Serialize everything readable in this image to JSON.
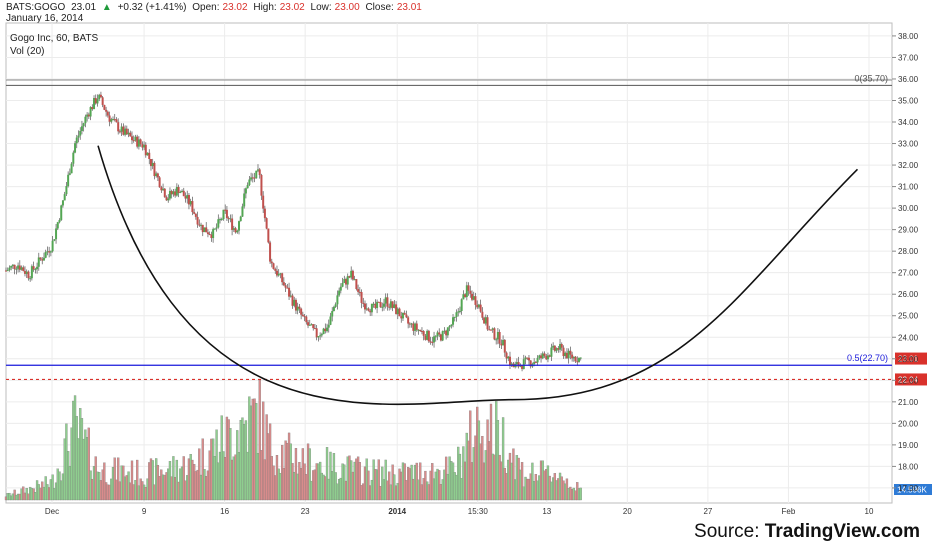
{
  "header": {
    "symbol": "BATS:GOGO",
    "last": "23.01",
    "arrow": "▲",
    "change": "+0.32 (+1.41%)",
    "open_label": "Open:",
    "open": "23.02",
    "high_label": "High:",
    "high": "23.02",
    "low_label": "Low:",
    "low": "23.00",
    "close_label": "Close:",
    "close": "23.01",
    "date": "January 16, 2014"
  },
  "source": {
    "label": "Source: ",
    "name": "TradingView.com"
  },
  "chart_data": {
    "type": "candlestick",
    "title": "Gogo Inc, 60, BATS",
    "indicator": "Vol (20)",
    "y_ticks": [
      17,
      18,
      19,
      20,
      21,
      22,
      23,
      24,
      25,
      26,
      27,
      28,
      29,
      30,
      31,
      32,
      33,
      34,
      35,
      36,
      37,
      38
    ],
    "y_tick_labels": [
      "17.00",
      "18.00",
      "19.00",
      "20.00",
      "21.00",
      "22.00",
      "23.00",
      "24.00",
      "25.00",
      "26.00",
      "27.00",
      "28.00",
      "29.00",
      "30.00",
      "31.00",
      "32.00",
      "33.00",
      "34.00",
      "35.00",
      "36.00",
      "37.00",
      "38.00"
    ],
    "ylim": [
      16.3,
      38.6
    ],
    "x_ticks": [
      "Dec",
      "9",
      "16",
      "23",
      "2014",
      "15:30",
      "13",
      "20",
      "27",
      "Feb",
      "10"
    ],
    "x_axis_start": "2013-11-27",
    "x_axis_end": "2014-02-12",
    "x_tick_dates": [
      "2013-12-01",
      "2013-12-09",
      "2013-12-16",
      "2013-12-23",
      "2013-12-31",
      "2014-01-07",
      "2014-01-13",
      "2014-01-20",
      "2014-01-27",
      "2014-02-03",
      "2014-02-10"
    ],
    "fib_levels": [
      {
        "label": "0(35.70)",
        "value": 35.7,
        "color": "#555555"
      },
      {
        "label": "0.5(22.70)",
        "value": 22.7,
        "color": "#1a1adb"
      }
    ],
    "last_price": {
      "label": "23.01",
      "value": 23.01,
      "color": "#d9312b"
    },
    "support": {
      "label": "22.04",
      "value": 22.04,
      "color": "#d9312b"
    },
    "volume_label": "14.596K",
    "colors": {
      "up": "#53a653",
      "down": "#c0504d",
      "volume_up": "#8fce8f",
      "volume_down": "#d98c8c"
    },
    "cup_curve": {
      "description": "hand-drawn cup arc",
      "start": [
        "2013-12-05",
        32.9
      ],
      "bottom": [
        "2014-01-10",
        21.1
      ],
      "end": [
        "2014-02-09",
        31.8
      ]
    },
    "close_path": [
      [
        "2013-11-27",
        27.1
      ],
      [
        "2013-11-28",
        27.4
      ],
      [
        "2013-11-29",
        26.9
      ],
      [
        "2013-12-01",
        28.3
      ],
      [
        "2013-12-02",
        30.4
      ],
      [
        "2013-12-03",
        33.0
      ],
      [
        "2013-12-04",
        34.3
      ],
      [
        "2013-12-05",
        35.2
      ],
      [
        "2013-12-06",
        34.2
      ],
      [
        "2013-12-07",
        33.6
      ],
      [
        "2013-12-08",
        33.2
      ],
      [
        "2013-12-09",
        32.9
      ],
      [
        "2013-12-10",
        31.6
      ],
      [
        "2013-12-11",
        30.5
      ],
      [
        "2013-12-12",
        30.9
      ],
      [
        "2013-12-13",
        30.2
      ],
      [
        "2013-12-14",
        29.1
      ],
      [
        "2013-12-15",
        28.8
      ],
      [
        "2013-12-16",
        29.8
      ],
      [
        "2013-12-17",
        28.9
      ],
      [
        "2013-12-18",
        31.2
      ],
      [
        "2013-12-19",
        31.6
      ],
      [
        "2013-12-20",
        27.5
      ],
      [
        "2013-12-21",
        26.6
      ],
      [
        "2013-12-22",
        25.6
      ],
      [
        "2013-12-23",
        24.7
      ],
      [
        "2013-12-24",
        24.1
      ],
      [
        "2013-12-25",
        24.5
      ],
      [
        "2013-12-26",
        26.3
      ],
      [
        "2013-12-27",
        26.9
      ],
      [
        "2013-12-28",
        25.6
      ],
      [
        "2013-12-29",
        25.3
      ],
      [
        "2013-12-30",
        25.7
      ],
      [
        "2013-12-31",
        25.2
      ],
      [
        "2014-01-01",
        24.6
      ],
      [
        "2014-01-02",
        24.3
      ],
      [
        "2014-01-03",
        23.9
      ],
      [
        "2014-01-04",
        24.1
      ],
      [
        "2014-01-05",
        24.8
      ],
      [
        "2014-01-06",
        26.2
      ],
      [
        "2014-01-07",
        25.6
      ],
      [
        "2014-01-08",
        24.3
      ],
      [
        "2014-01-09",
        23.9
      ],
      [
        "2014-01-10",
        22.6
      ],
      [
        "2014-01-11",
        22.8
      ],
      [
        "2014-01-12",
        22.9
      ],
      [
        "2014-01-13",
        23.2
      ],
      [
        "2014-01-14",
        23.5
      ],
      [
        "2014-01-15",
        23.1
      ],
      [
        "2014-01-16",
        23.01
      ]
    ],
    "volume_path": [
      [
        "2013-11-27",
        0.05
      ],
      [
        "2013-12-01",
        0.2
      ],
      [
        "2013-12-03",
        0.85
      ],
      [
        "2013-12-05",
        0.35
      ],
      [
        "2013-12-09",
        0.3
      ],
      [
        "2013-12-13",
        0.4
      ],
      [
        "2013-12-16",
        0.7
      ],
      [
        "2013-12-19",
        1.0
      ],
      [
        "2013-12-20",
        0.6
      ],
      [
        "2013-12-23",
        0.45
      ],
      [
        "2013-12-27",
        0.35
      ],
      [
        "2013-12-31",
        0.3
      ],
      [
        "2014-01-05",
        0.35
      ],
      [
        "2014-01-07",
        0.85
      ],
      [
        "2014-01-09",
        0.75
      ],
      [
        "2014-01-11",
        0.3
      ],
      [
        "2014-01-14",
        0.3
      ],
      [
        "2014-01-16",
        0.1
      ]
    ]
  }
}
